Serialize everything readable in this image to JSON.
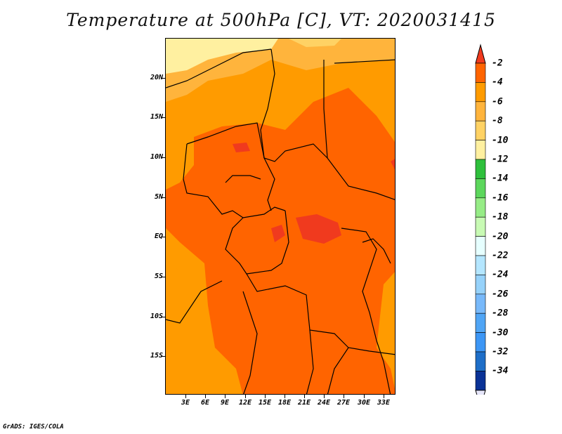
{
  "title": "Temperature at 500hPa [C], VT: 2020031415",
  "credit": "GrADS: IGES/COLA",
  "lat_labels": [
    "20N",
    "15N",
    "10N",
    "5N",
    "EQ",
    "5S",
    "10S",
    "15S"
  ],
  "lon_labels": [
    "3E",
    "6E",
    "9E",
    "12E",
    "15E",
    "18E",
    "21E",
    "24E",
    "27E",
    "30E",
    "33E"
  ],
  "colorbar": {
    "labels": [
      "-2",
      "-4",
      "-6",
      "-8",
      "-10",
      "-12",
      "-14",
      "-16",
      "-18",
      "-20",
      "-22",
      "-24",
      "-26",
      "-28",
      "-30",
      "-32",
      "-34"
    ],
    "colors": [
      "#f03a1e",
      "#ff6400",
      "#ff9b00",
      "#ffb43c",
      "#ffd264",
      "#fff0a0",
      "#2ec03c",
      "#5cd75c",
      "#96ec86",
      "#c8fab4",
      "#e6ffff",
      "#b4e6ff",
      "#96d2fa",
      "#78b9fa",
      "#50a5f5",
      "#3c96f5",
      "#1e6ec8",
      "#0a3296",
      "#aad2fa"
    ],
    "top_arrow_color": "#f03a1e",
    "bottom_arrow_color": "#e6e6fa"
  },
  "map_colors": {
    "base": "#ff9b00",
    "warm": "#ff6400",
    "warmest": "#f03a1e",
    "cool": "#ffb43c",
    "coolest": "#fff0a0",
    "mid": "#ffd264",
    "border": "#000000"
  }
}
